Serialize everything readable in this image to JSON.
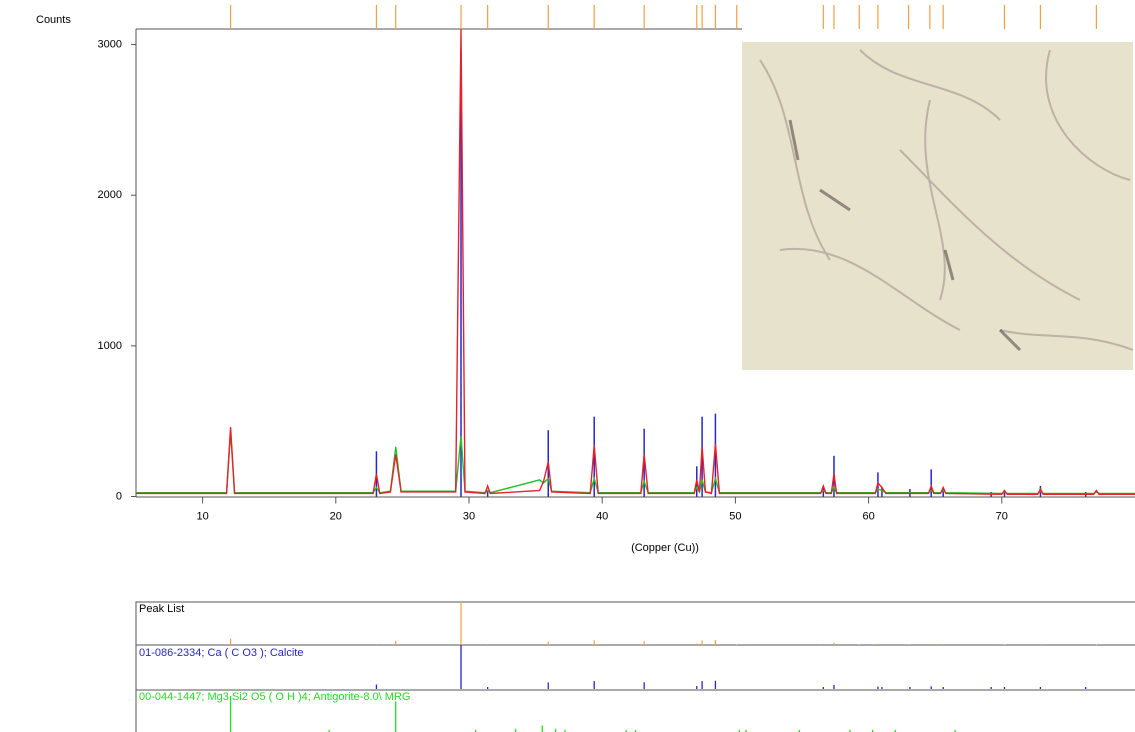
{
  "chart_data": {
    "type": "line",
    "y_label": "Counts",
    "x_label": "(Copper (Cu))",
    "xlim": [
      5,
      80
    ],
    "ylim": [
      0,
      3100
    ],
    "xticks": [
      10,
      20,
      30,
      40,
      50,
      60,
      70
    ],
    "yticks": [
      0,
      1000,
      2000,
      3000
    ],
    "x": [
      5,
      11.8,
      12.1,
      12.4,
      19,
      22.8,
      23.05,
      23.3,
      24.1,
      24.5,
      24.9,
      29.0,
      29.4,
      29.7,
      31.2,
      31.4,
      31.6,
      35.3,
      35.6,
      35.95,
      36.2,
      39.1,
      39.4,
      39.7,
      42.9,
      43.15,
      43.45,
      46.9,
      47.1,
      47.3,
      47.5,
      47.75,
      48.2,
      48.5,
      48.8,
      56.4,
      56.6,
      56.8,
      57.2,
      57.4,
      57.6,
      60.5,
      60.7,
      61.0,
      61.3,
      64.5,
      64.7,
      64.9,
      65.4,
      65.6,
      65.8,
      70.0,
      70.2,
      70.4,
      72.7,
      72.9,
      73.1,
      76.9,
      77.1,
      77.3,
      80
    ],
    "series": [
      {
        "color": "#22c02a",
        "values": [
          25,
          25,
          430,
          25,
          25,
          25,
          60,
          25,
          35,
          330,
          35,
          35,
          400,
          35,
          25,
          40,
          25,
          110,
          90,
          120,
          35,
          25,
          120,
          25,
          25,
          100,
          25,
          25,
          60,
          30,
          110,
          30,
          25,
          120,
          25,
          25,
          40,
          25,
          25,
          60,
          25,
          25,
          50,
          40,
          25,
          25,
          40,
          25,
          25,
          40,
          25,
          20,
          30,
          20,
          20,
          35,
          20,
          20,
          30,
          20,
          20
        ]
      },
      {
        "color": "#e8202a",
        "values": [
          20,
          20,
          460,
          20,
          20,
          20,
          150,
          20,
          30,
          280,
          30,
          30,
          3100,
          30,
          20,
          70,
          20,
          40,
          100,
          230,
          30,
          20,
          340,
          20,
          20,
          280,
          20,
          20,
          110,
          30,
          330,
          30,
          20,
          350,
          20,
          20,
          70,
          20,
          20,
          150,
          20,
          20,
          90,
          60,
          20,
          20,
          70,
          20,
          20,
          60,
          20,
          15,
          40,
          15,
          15,
          50,
          15,
          15,
          40,
          15,
          15
        ]
      }
    ],
    "peak_list": {
      "label": "Peak List",
      "color": "#f0a040",
      "positions": [
        12.1,
        23.05,
        24.5,
        29.4,
        31.4,
        35.95,
        39.4,
        43.15,
        47.1,
        47.5,
        48.5,
        50.1,
        56.6,
        57.4,
        59.3,
        60.7,
        63.0,
        64.6,
        65.6,
        70.2,
        72.9,
        77.1
      ],
      "values": [
        440,
        60,
        280,
        3050,
        60,
        230,
        330,
        260,
        100,
        320,
        340,
        30,
        70,
        150,
        40,
        90,
        50,
        70,
        60,
        40,
        50,
        40
      ]
    },
    "references": [
      {
        "name": "01-086-2334; Ca ( C O3 ); Calcite",
        "color": "#2626d0",
        "positions": [
          23.05,
          29.4,
          31.4,
          35.95,
          39.4,
          43.15,
          47.1,
          47.5,
          48.5,
          56.6,
          57.4,
          60.7,
          61.0,
          63.1,
          64.7,
          65.6,
          69.2,
          70.2,
          72.9,
          76.3
        ],
        "values": [
          300,
          2950,
          40,
          440,
          530,
          450,
          200,
          530,
          550,
          60,
          270,
          160,
          60,
          50,
          180,
          60,
          30,
          40,
          70,
          30
        ]
      },
      {
        "name": "00-044-1447; Mg3 Si2 O5 ( O H )4; Antigorite-8.0\\ MRG",
        "color": "#22dd22",
        "positions": [
          12.1,
          19.5,
          24.5,
          30.5,
          33.5,
          35.5,
          36.5,
          37.2,
          41.8,
          42.5,
          50.3,
          50.8,
          54.8,
          58.6,
          60.3,
          62.0,
          66.5
        ],
        "values": [
          100,
          5,
          85,
          6,
          8,
          18,
          8,
          6,
          5,
          5,
          6,
          5,
          5,
          6,
          5,
          6,
          5
        ]
      }
    ]
  }
}
